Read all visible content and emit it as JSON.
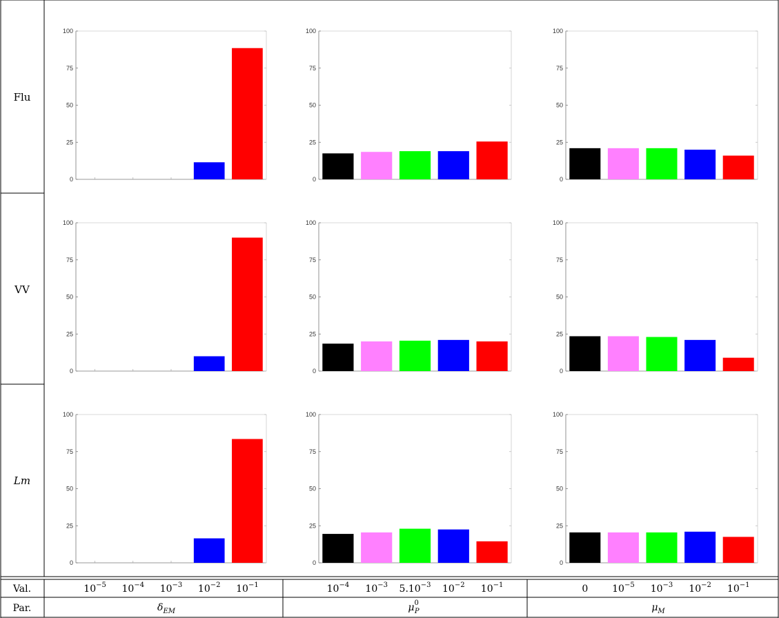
{
  "rows": [
    {
      "label": "Flu",
      "italic": false
    },
    {
      "label": "VV",
      "italic": false
    },
    {
      "label": "Lm",
      "italic": true
    }
  ],
  "colors": [
    "#000000",
    "#ff80ff",
    "#00ff00",
    "#0000ff",
    "#ff0000"
  ],
  "footer": {
    "val_label": "Val.",
    "par_label": "Par.",
    "groups": [
      {
        "values": [
          {
            "base": "10",
            "exp": "−5"
          },
          {
            "base": "10",
            "exp": "−4"
          },
          {
            "base": "10",
            "exp": "−3"
          },
          {
            "base": "10",
            "exp": "−2"
          },
          {
            "base": "10",
            "exp": "−1"
          }
        ],
        "param": {
          "main": "δ",
          "sub": "EM",
          "sup": ""
        }
      },
      {
        "values": [
          {
            "base": "10",
            "exp": "−4"
          },
          {
            "base": "10",
            "exp": "−3"
          },
          {
            "base": "5.10",
            "exp": "−3"
          },
          {
            "base": "10",
            "exp": "−2"
          },
          {
            "base": "10",
            "exp": "−1"
          }
        ],
        "param": {
          "main": "μ",
          "sub": "P",
          "sup": "0"
        }
      },
      {
        "values": [
          {
            "base": "0",
            "exp": ""
          },
          {
            "base": "10",
            "exp": "−5"
          },
          {
            "base": "10",
            "exp": "−3"
          },
          {
            "base": "10",
            "exp": "−2"
          },
          {
            "base": "10",
            "exp": "−1"
          }
        ],
        "param": {
          "main": "μ",
          "sub": "M",
          "sup": ""
        }
      }
    ]
  },
  "chart_data": [
    {
      "type": "bar",
      "row": "Flu",
      "column": 1,
      "ylim": [
        0,
        100
      ],
      "yticks": [
        0,
        25,
        50,
        75,
        100
      ],
      "values": [
        0,
        0,
        0,
        11.5,
        88.5
      ]
    },
    {
      "type": "bar",
      "row": "Flu",
      "column": 2,
      "ylim": [
        0,
        100
      ],
      "yticks": [
        0,
        25,
        50,
        75,
        100
      ],
      "values": [
        17.5,
        18.5,
        19,
        19,
        25.5
      ]
    },
    {
      "type": "bar",
      "row": "Flu",
      "column": 3,
      "ylim": [
        0,
        100
      ],
      "yticks": [
        0,
        25,
        50,
        75,
        100
      ],
      "values": [
        21,
        21,
        21,
        20,
        16
      ]
    },
    {
      "type": "bar",
      "row": "VV",
      "column": 1,
      "ylim": [
        0,
        100
      ],
      "yticks": [
        0,
        25,
        50,
        75,
        100
      ],
      "values": [
        0,
        0,
        0,
        10,
        90
      ]
    },
    {
      "type": "bar",
      "row": "VV",
      "column": 2,
      "ylim": [
        0,
        100
      ],
      "yticks": [
        0,
        25,
        50,
        75,
        100
      ],
      "values": [
        18.5,
        20,
        20.5,
        21,
        20
      ]
    },
    {
      "type": "bar",
      "row": "VV",
      "column": 3,
      "ylim": [
        0,
        100
      ],
      "yticks": [
        0,
        25,
        50,
        75,
        100
      ],
      "values": [
        23.5,
        23.5,
        23,
        21,
        9
      ]
    },
    {
      "type": "bar",
      "row": "Lm",
      "column": 1,
      "ylim": [
        0,
        100
      ],
      "yticks": [
        0,
        25,
        50,
        75,
        100
      ],
      "values": [
        0,
        0,
        0,
        16.5,
        83.5
      ]
    },
    {
      "type": "bar",
      "row": "Lm",
      "column": 2,
      "ylim": [
        0,
        100
      ],
      "yticks": [
        0,
        25,
        50,
        75,
        100
      ],
      "values": [
        19.5,
        20.5,
        23,
        22.5,
        14.5
      ]
    },
    {
      "type": "bar",
      "row": "Lm",
      "column": 3,
      "ylim": [
        0,
        100
      ],
      "yticks": [
        0,
        25,
        50,
        75,
        100
      ],
      "values": [
        20.5,
        20.5,
        20.5,
        21,
        17.5
      ]
    }
  ]
}
